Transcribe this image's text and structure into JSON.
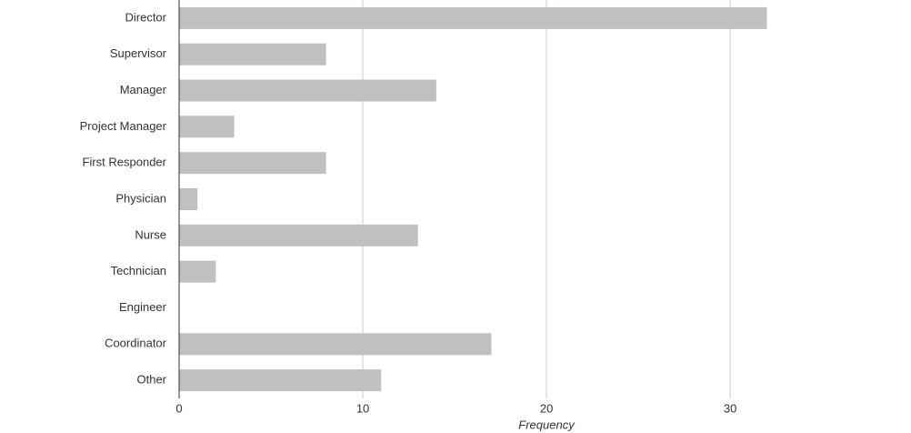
{
  "chart_data": {
    "type": "barh",
    "x_label": "Frequency",
    "categories": [
      "Director",
      "Supervisor",
      "Manager",
      "Project Manager",
      "First Responder",
      "Physician",
      "Nurse",
      "Technician",
      "Engineer",
      "Coordinator",
      "Other"
    ],
    "values": [
      32,
      8,
      14,
      3,
      8,
      1,
      13,
      2,
      0,
      17,
      11
    ],
    "color": "#c0c0c0",
    "xlim": [
      0,
      39
    ],
    "xticks": [
      0,
      10,
      20,
      30
    ],
    "grid": true
  }
}
